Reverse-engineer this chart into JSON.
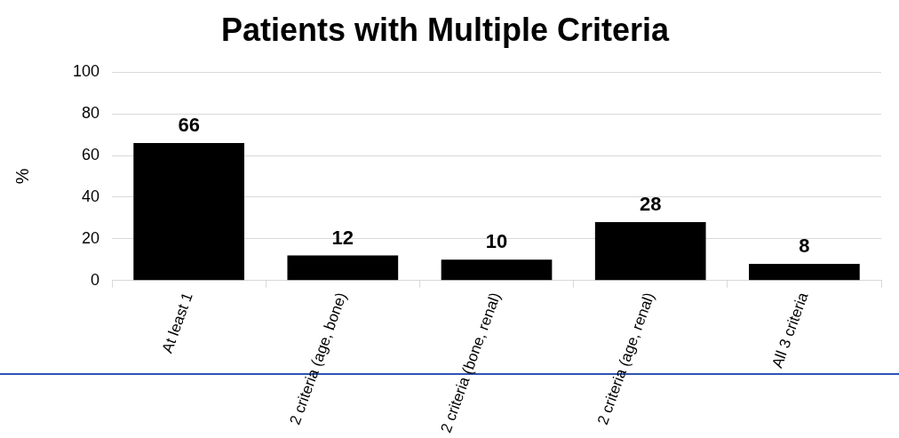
{
  "chart_data": {
    "type": "bar",
    "title": "Patients with Multiple Criteria",
    "ylabel": "%",
    "categories": [
      "At least 1",
      "2 criteria (age, bone)",
      "2 criteria (bone, renal)",
      "2 criteria (age, renal)",
      "All 3 criteria"
    ],
    "values": [
      66,
      12,
      10,
      28,
      8
    ],
    "color": "#000000",
    "ylim": [
      0,
      100
    ],
    "yticks": [
      0,
      20,
      40,
      60,
      80,
      100
    ],
    "grid": "y",
    "data_labels": true
  }
}
